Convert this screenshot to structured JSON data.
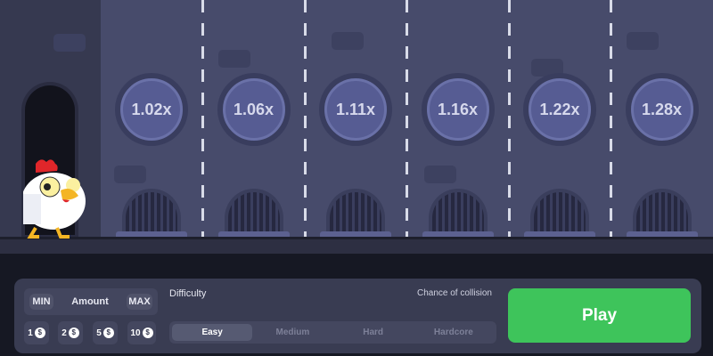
{
  "game": {
    "multipliers": [
      "1.02x",
      "1.06x",
      "1.11x",
      "1.16x",
      "1.22x",
      "1.28x"
    ]
  },
  "controls": {
    "min_label": "MIN",
    "amount_label": "Amount",
    "max_label": "MAX",
    "chips": [
      "1",
      "2",
      "5",
      "10"
    ],
    "currency_icon": "dollar-coin-icon",
    "difficulty_label": "Difficulty",
    "collision_label": "Chance of collision",
    "difficulties": [
      "Easy",
      "Medium",
      "Hard",
      "Hardcore"
    ],
    "selected_difficulty": "Easy",
    "play_label": "Play"
  },
  "colors": {
    "play": "#3ec45b",
    "lane": "#474b6b",
    "coin": "#565c93"
  }
}
